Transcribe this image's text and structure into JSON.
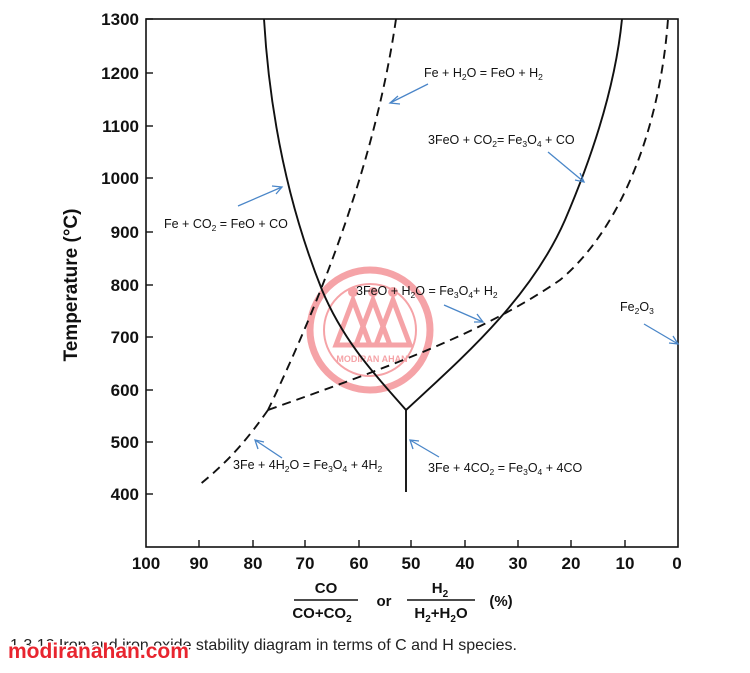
{
  "diagram": {
    "y_axis": {
      "label": "Temperature (°C)",
      "ticks": [
        "1300",
        "1200",
        "1100",
        "1000",
        "900",
        "800",
        "700",
        "600",
        "500",
        "400"
      ]
    },
    "x_axis": {
      "ticks": [
        "100",
        "90",
        "80",
        "70",
        "60",
        "50",
        "40",
        "30",
        "20",
        "10",
        "0"
      ],
      "label": {
        "co_num": "CO",
        "co_den": "CO+CO",
        "co_den_sub": "2",
        "or": "or",
        "h_num": "H",
        "h_num_sub": "2",
        "h_den_a": "H",
        "h_den_a_sub": "2",
        "h_den_b": "+H",
        "h_den_b_sub": "2",
        "h_den_c": "O",
        "unit": "(%)"
      }
    },
    "annotations": {
      "fe_h2o": [
        {
          "t": "Fe + H"
        },
        {
          "t": "2",
          "sub": true
        },
        {
          "t": "O = FeO + H"
        },
        {
          "t": "2",
          "sub": true
        }
      ],
      "feo_co2": [
        {
          "t": "3FeO + CO"
        },
        {
          "t": "2",
          "sub": true
        },
        {
          "t": "= Fe"
        },
        {
          "t": "3",
          "sub": true
        },
        {
          "t": "O"
        },
        {
          "t": "4",
          "sub": true
        },
        {
          "t": " + CO"
        }
      ],
      "fe_co2": [
        {
          "t": "Fe + CO"
        },
        {
          "t": "2",
          "sub": true
        },
        {
          "t": " = FeO + CO"
        }
      ],
      "feo_h2o": [
        {
          "t": "3FeO + H"
        },
        {
          "t": "2",
          "sub": true
        },
        {
          "t": "O = Fe"
        },
        {
          "t": "3",
          "sub": true
        },
        {
          "t": "O"
        },
        {
          "t": "4",
          "sub": true
        },
        {
          "t": "+ H"
        },
        {
          "t": "2",
          "sub": true
        }
      ],
      "fe2o3": [
        {
          "t": "Fe"
        },
        {
          "t": "2",
          "sub": true
        },
        {
          "t": "O"
        },
        {
          "t": "3",
          "sub": true
        }
      ],
      "fe_4h2o": [
        {
          "t": "3Fe + 4H"
        },
        {
          "t": "2",
          "sub": true
        },
        {
          "t": "O = Fe"
        },
        {
          "t": "3",
          "sub": true
        },
        {
          "t": "O"
        },
        {
          "t": "4",
          "sub": true
        },
        {
          "t": " + 4H"
        },
        {
          "t": "2",
          "sub": true
        }
      ],
      "fe_4co2": [
        {
          "t": "3Fe + 4CO"
        },
        {
          "t": "2",
          "sub": true
        },
        {
          "t": " = Fe"
        },
        {
          "t": "3",
          "sub": true
        },
        {
          "t": "O"
        },
        {
          "t": "4",
          "sub": true
        },
        {
          "t": " + 4CO"
        }
      ]
    },
    "caption": "1.3.12 Iron and iron oxide stability diagram in terms of C and H species.",
    "watermark": {
      "url": "modiranahan.com",
      "badge": "MODIRAN AHAN"
    },
    "colors": {
      "line": "#111111",
      "arrow": "#4a86c8",
      "watermark": "#e8252f"
    }
  }
}
